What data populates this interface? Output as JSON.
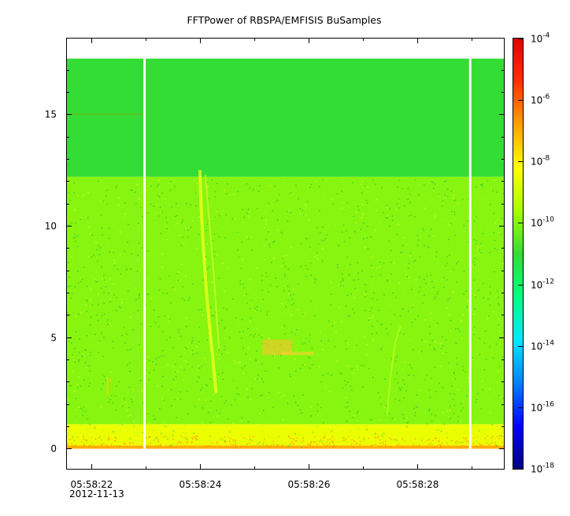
{
  "chart_data": {
    "type": "heatmap",
    "title": "FFTPower of RBSPA/EMFISIS  BuSamples",
    "xlabel": "",
    "ylabel": "",
    "x_ticks": [
      "05:58:22",
      "05:58:24",
      "05:58:26",
      "05:58:28"
    ],
    "x_date_label": "2012-11-13",
    "x_range_seconds": [
      -0.45,
      7.6
    ],
    "y_ticks": [
      0,
      5,
      10,
      15
    ],
    "ylim": [
      -0.9,
      18.4
    ],
    "colorbar": {
      "scale": "log",
      "range": [
        1e-18,
        0.0001
      ],
      "ticks": [
        {
          "base": "10",
          "exp": "-4",
          "value": 0.0001
        },
        {
          "base": "10",
          "exp": "-6",
          "value": 1e-06
        },
        {
          "base": "10",
          "exp": "-8",
          "value": 1e-08
        },
        {
          "base": "10",
          "exp": "-10",
          "value": 1e-10
        },
        {
          "base": "10",
          "exp": "-12",
          "value": 1e-12
        },
        {
          "base": "10",
          "exp": "-14",
          "value": 1e-14
        },
        {
          "base": "10",
          "exp": "-16",
          "value": 1e-16
        },
        {
          "base": "10",
          "exp": "-18",
          "value": 1e-18
        }
      ],
      "colors": [
        "#00007f",
        "#0000ff",
        "#0080ff",
        "#00e8ff",
        "#00ff80",
        "#33dd33",
        "#a8ff00",
        "#ffff00",
        "#ffa000",
        "#ff3000",
        "#e00000"
      ]
    },
    "freq_bands": [
      {
        "from": 0,
        "to": 0.15,
        "power": 1e-07
      },
      {
        "from": 0.15,
        "to": 1.1,
        "power": 3e-09
      },
      {
        "from": 1.1,
        "to": 12.2,
        "power": 1e-10
      },
      {
        "from": 12.2,
        "to": 17.5,
        "power": 1e-11
      }
    ],
    "data_gaps_x": [
      0.98,
      6.98
    ],
    "grid": false
  }
}
